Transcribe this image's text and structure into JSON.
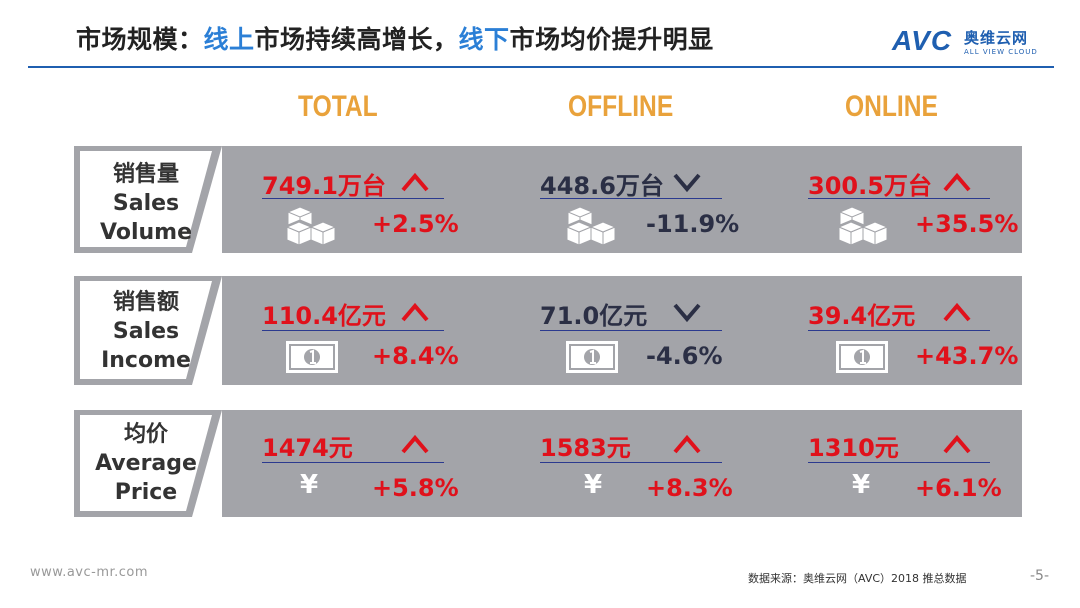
{
  "title": {
    "part1": "市场规模：",
    "part2": "线上",
    "part3": "市场持续高增长，",
    "part4": "线下",
    "part5": "市场均价提升明显"
  },
  "logo": {
    "brand": "AVC",
    "cn": "奥维云网",
    "en": "ALL VIEW CLOUD"
  },
  "columns": [
    "TOTAL",
    "OFFLINE",
    "ONLINE"
  ],
  "rows": [
    {
      "label_cn": "销售量",
      "label_en1": "Sales",
      "label_en2": "Volume",
      "icon": "boxes-icon",
      "cells": [
        {
          "value": "749.1万台",
          "direction": "up",
          "change": "+2.5%"
        },
        {
          "value": "448.6万台",
          "direction": "down",
          "change": "-11.9%"
        },
        {
          "value": "300.5万台",
          "direction": "up",
          "change": "+35.5%"
        }
      ]
    },
    {
      "label_cn": "销售额",
      "label_en1": "Sales",
      "label_en2": "Income",
      "icon": "banknote-icon",
      "cells": [
        {
          "value": "110.4亿元",
          "direction": "up",
          "change": "+8.4%"
        },
        {
          "value": "71.0亿元",
          "direction": "down",
          "change": "-4.6%"
        },
        {
          "value": "39.4亿元",
          "direction": "up",
          "change": "+43.7%"
        }
      ]
    },
    {
      "label_cn": "均价",
      "label_en1": "Average",
      "label_en2": "Price",
      "icon": "yen-icon",
      "icon_glyph": "¥",
      "cells": [
        {
          "value": "1474元",
          "direction": "up",
          "change": "+5.8%"
        },
        {
          "value": "1583元",
          "direction": "up",
          "change": "+8.3%"
        },
        {
          "value": "1310元",
          "direction": "up",
          "change": "+6.1%"
        }
      ]
    }
  ],
  "colors": {
    "up": "#e0111b",
    "down": "#2b2f45",
    "band": "#a3a4a9",
    "heading": "#e9a23b",
    "accent": "#2b7fd6"
  },
  "footer": {
    "website": "www.avc-mr.com",
    "source": "数据来源：奥维云网（AVC）2018 推总数据",
    "page": "-5-"
  }
}
